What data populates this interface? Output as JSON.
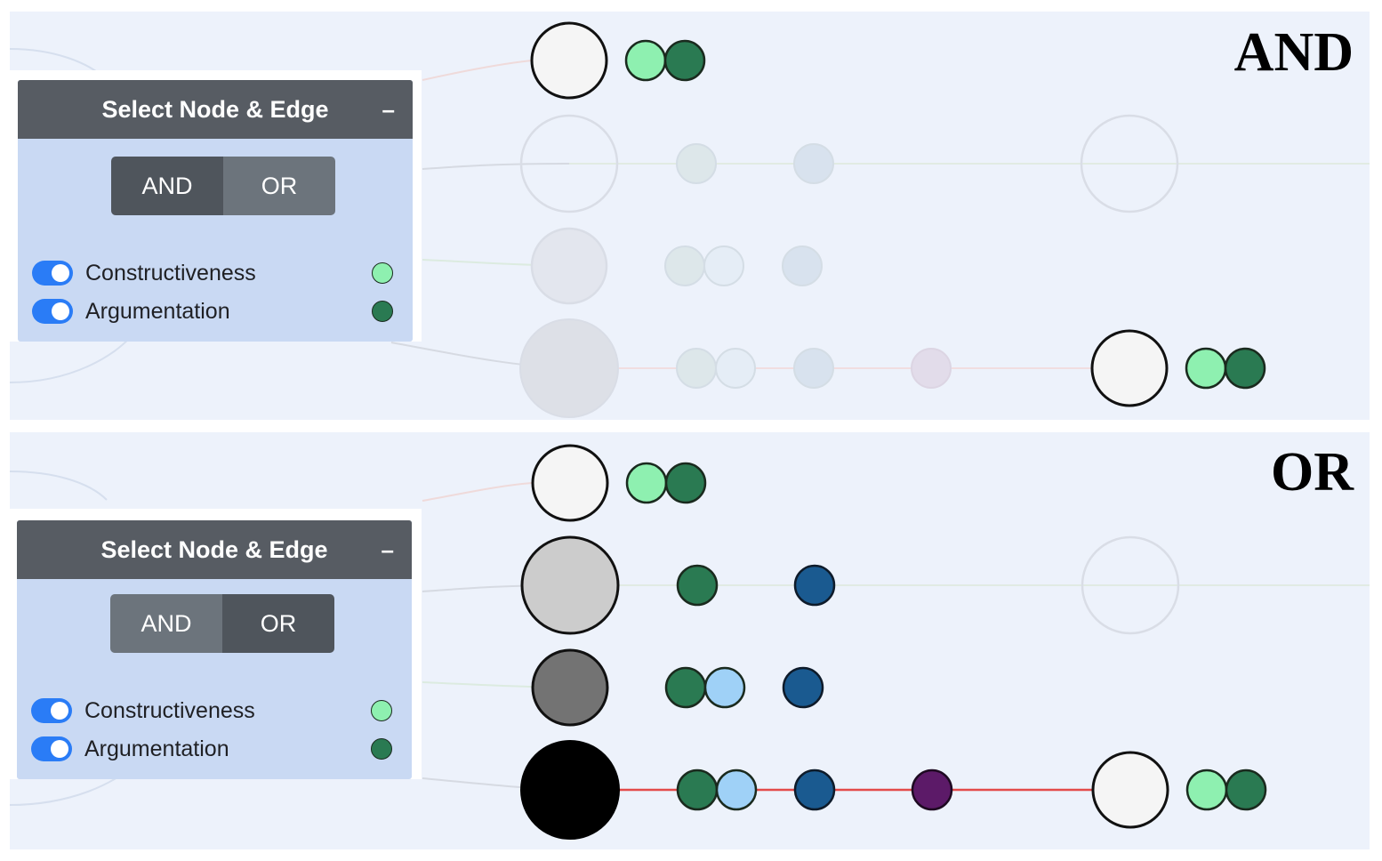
{
  "colors": {
    "canvas_bg": "#edf2fb",
    "panel_bg": "#c9d9f3",
    "header_bg": "#575c63",
    "toggle_on": "#2a7cf6",
    "constructiveness": "#8ef0b0",
    "argumentation": "#2a7a52",
    "light_blue": "#9fd1f7",
    "dark_blue": "#1a5a90",
    "purple": "#5c1a68",
    "edge_red": "#e34a4a"
  },
  "panels": [
    {
      "mode_label": "AND",
      "widget": {
        "title": "Select Node & Edge",
        "collapse_label": "–",
        "and_label": "AND",
        "or_label": "OR",
        "active": "AND",
        "toggles": [
          {
            "label": "Constructiveness",
            "icon": "light-green-dot",
            "on": true
          },
          {
            "label": "Argumentation",
            "icon": "dark-green-dot",
            "on": true
          }
        ]
      }
    },
    {
      "mode_label": "OR",
      "widget": {
        "title": "Select Node & Edge",
        "collapse_label": "–",
        "and_label": "AND",
        "or_label": "OR",
        "active": "OR",
        "toggles": [
          {
            "label": "Constructiveness",
            "icon": "light-green-dot",
            "on": true
          },
          {
            "label": "Argumentation",
            "icon": "dark-green-dot",
            "on": true
          }
        ]
      }
    }
  ]
}
